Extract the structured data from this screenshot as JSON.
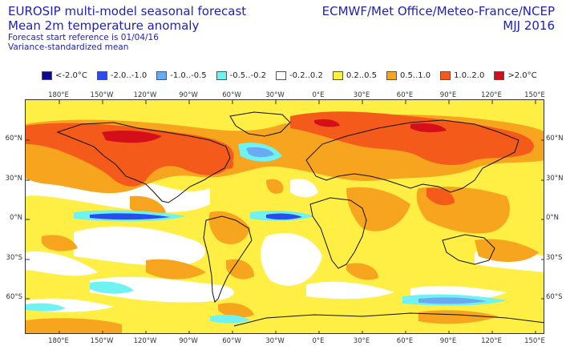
{
  "header": {
    "title_line1": "EUROSIP multi-model seasonal forecast",
    "title_line2": "Mean 2m temperature anomaly",
    "start_ref": "Forecast start reference is 01/04/16",
    "method": "Variance-standardized mean",
    "centres": "ECMWF/Met Office/Meteo-France/NCEP",
    "period": "MJJ 2016"
  },
  "legend": [
    {
      "label": "<-2.0°C",
      "color": "#0a0a96"
    },
    {
      "label": "-2.0..-1.0",
      "color": "#2a4cf0"
    },
    {
      "label": "-1.0..-0.5",
      "color": "#6aaaf2"
    },
    {
      "label": "-0.5..-0.2",
      "color": "#6ef2f2"
    },
    {
      "label": "-0.2..0.2",
      "color": "#ffffff"
    },
    {
      "label": "0.2..0.5",
      "color": "#ffee44"
    },
    {
      "label": "0.5..1.0",
      "color": "#f7a51e"
    },
    {
      "label": "1.0..2.0",
      "color": "#f45a1a"
    },
    {
      "label": ">2.0°C",
      "color": "#d40f1a"
    }
  ],
  "axes": {
    "lon_labels": [
      "180°E",
      "150°W",
      "120°W",
      "90°W",
      "60°W",
      "30°W",
      "0°E",
      "30°E",
      "60°E",
      "90°E",
      "120°E",
      "150°E"
    ],
    "lat_labels": [
      "60°N",
      "30°N",
      "0°N",
      "30°S",
      "60°S"
    ]
  }
}
